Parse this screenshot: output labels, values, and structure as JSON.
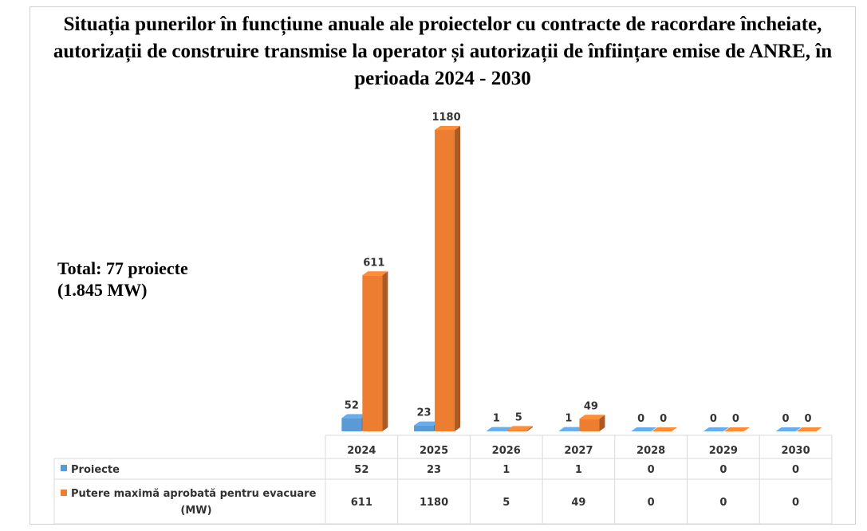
{
  "title": "Situația punerilor în funcțiune anuale ale proiectelor cu contracte de racordare încheiate, autorizații de construire transmise la operator și autorizații de înființare emise de ANRE, în perioada 2024 - 2030",
  "annotation_line1": "Total: 77 proiecte",
  "annotation_line2": "(1.845 MW)",
  "chart_data": {
    "type": "bar",
    "title": "Situația punerilor în funcțiune anuale ale proiectelor cu contracte de racordare încheiate, autorizații de construire transmise la operator și autorizații de înființare emise de ANRE, în perioada 2024 - 2030",
    "categories": [
      "2024",
      "2025",
      "2026",
      "2027",
      "2028",
      "2029",
      "2030"
    ],
    "series": [
      {
        "name": "Proiecte",
        "values": [
          52,
          23,
          1,
          1,
          0,
          0,
          0
        ],
        "color": "#5b9bd5"
      },
      {
        "name": "Putere maximă aprobată pentru evacuare (MW)",
        "values": [
          611,
          1180,
          5,
          49,
          0,
          0,
          0
        ],
        "color": "#ed7d31"
      }
    ],
    "ylim": [
      0,
      1200
    ],
    "grid": false,
    "legend": "data-table",
    "style": "3d"
  }
}
